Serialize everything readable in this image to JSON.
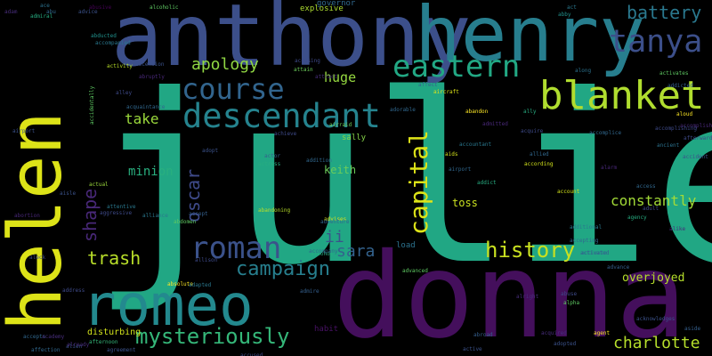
{
  "words": [
    {
      "text": "julie",
      "color": "#21a784"
    },
    {
      "text": "donna",
      "color": "#440f5c"
    },
    {
      "text": "anthony",
      "color": "#3c4f8a"
    },
    {
      "text": "helen",
      "color": "#dde318"
    },
    {
      "text": "henry",
      "color": "#277e8e"
    },
    {
      "text": "romeo",
      "color": "#23898e"
    },
    {
      "text": "blanket",
      "color": "#b0dd2f"
    },
    {
      "text": "descendant",
      "color": "#25838e"
    },
    {
      "text": "tanya",
      "color": "#3c4f8a"
    },
    {
      "text": "eastern",
      "color": "#22a884"
    },
    {
      "text": "course",
      "color": "#32658e"
    },
    {
      "text": "roman",
      "color": "#3b528b"
    },
    {
      "text": "capital",
      "color": "#dde318"
    },
    {
      "text": "mysteriously",
      "color": "#35b779"
    },
    {
      "text": "campaign",
      "color": "#277f8e"
    },
    {
      "text": "history",
      "color": "#c8e020"
    },
    {
      "text": "battery",
      "color": "#2a788e"
    },
    {
      "text": "apology",
      "color": "#90d743"
    },
    {
      "text": "oscar",
      "color": "#3e4a89"
    },
    {
      "text": "shape",
      "color": "#482878"
    },
    {
      "text": "trash",
      "color": "#b8de29"
    },
    {
      "text": "charlotte",
      "color": "#b5de2b"
    },
    {
      "text": "constantly",
      "color": "#a2da37"
    },
    {
      "text": "sara",
      "color": "#33628d"
    },
    {
      "text": "overjoyed",
      "color": "#b5de2b"
    },
    {
      "text": "huge",
      "color": "#95d840"
    },
    {
      "text": "take",
      "color": "#9bd93c"
    },
    {
      "text": "ii",
      "color": "#3b528b"
    },
    {
      "text": "minion",
      "color": "#29af7f"
    },
    {
      "text": "keith",
      "color": "#6ccd5a"
    },
    {
      "text": "toss",
      "color": "#cae11f"
    },
    {
      "text": "sally",
      "color": "#86d549"
    },
    {
      "text": "disturbing",
      "color": "#d2e21b"
    },
    {
      "text": "explosive",
      "color": "#addc30"
    },
    {
      "text": "governor",
      "color": "#31688e"
    },
    {
      "text": "load",
      "color": "#2c728e"
    },
    {
      "text": "habit",
      "color": "#471164"
    }
  ],
  "small_words": [
    "adam",
    "advice",
    "ace",
    "abu",
    "admiral",
    "alcoholic",
    "act",
    "abby",
    "abusive",
    "accompanied",
    "abducted",
    "activity",
    "ascension",
    "abruptly",
    "alley",
    "accidentally",
    "attain",
    "acquaintance",
    "accusing",
    "attract",
    "aircraft",
    "affect",
    "abandon",
    "accomplice",
    "adopt",
    "actor",
    "addition",
    "airraid",
    "achieve",
    "actress",
    "advises",
    "adventure",
    "alliance",
    "abdomen",
    "absolute",
    "accept",
    "allison",
    "adapted",
    "abandoning",
    "actual",
    "aggressive",
    "airport",
    "addict",
    "aids",
    "allied",
    "accountant",
    "acquire",
    "according",
    "admitted",
    "abuse",
    "alpha",
    "acquired",
    "agent",
    "adopted",
    "acknowledges",
    "aside",
    "agency",
    "accident",
    "afterwards",
    "access",
    "additional",
    "accepting",
    "activate",
    "adult",
    "activates",
    "aloud",
    "along",
    "alike",
    "abortion",
    "aisle",
    "addicted",
    "accomplish",
    "account",
    "alcohol",
    "advance",
    "aleck",
    "alien",
    "accepts",
    "academy",
    "address",
    "admire",
    "advanced",
    "accompany",
    "already",
    "activated",
    "accused",
    "affection",
    "afternoon",
    "agreement",
    "alright",
    "active",
    "alarm",
    "abroad",
    "accomplishing",
    "ancient",
    "ally",
    "adorable",
    "airport",
    "attentive"
  ]
}
